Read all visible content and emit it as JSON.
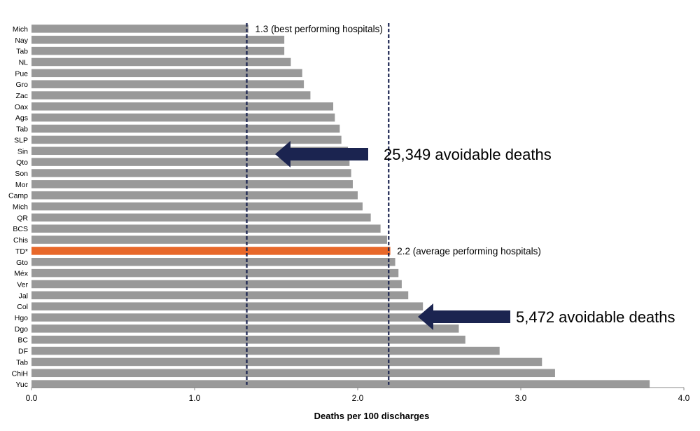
{
  "chart_data": {
    "type": "bar",
    "orientation": "horizontal",
    "categories": [
      "Mich",
      "Nay",
      "Tab",
      "NL",
      "Pue",
      "Gro",
      "Zac",
      "Oax",
      "Ags",
      "Tab",
      "SLP",
      "Sin",
      "Qto",
      "Son",
      "Mor",
      "Camp",
      "Mich",
      "QR",
      "BCS",
      "Chis",
      "TD*",
      "Gto",
      "Méx",
      "Ver",
      "Jal",
      "Col",
      "Hgo",
      "Dgo",
      "BC",
      "DF",
      "Tab",
      "ChiH",
      "Yuc"
    ],
    "values": [
      1.33,
      1.55,
      1.55,
      1.59,
      1.66,
      1.67,
      1.71,
      1.85,
      1.86,
      1.89,
      1.9,
      1.94,
      1.95,
      1.96,
      1.97,
      2.0,
      2.03,
      2.08,
      2.14,
      2.18,
      2.2,
      2.23,
      2.25,
      2.27,
      2.31,
      2.4,
      2.42,
      2.62,
      2.66,
      2.87,
      3.13,
      3.21,
      3.79
    ],
    "highlight_category": "TD*",
    "xlabel": "Deaths per 100 discharges",
    "xlim": [
      0,
      4
    ],
    "xticks": [
      "0.0",
      "1.0",
      "2.0",
      "3.0",
      "4.0"
    ],
    "grid": false,
    "reference_lines": [
      {
        "value": 1.32,
        "label": "1.3 (best performing hospitals)"
      },
      {
        "value": 2.19,
        "label": "2.2 (average performing hospitals)"
      }
    ],
    "annotations": [
      {
        "label": "25,349 avoidable deaths"
      },
      {
        "label": "5,472 avoidable deaths"
      }
    ],
    "colors": {
      "bar": "#999999",
      "highlight": "#e8682a",
      "arrow": "#1b2450",
      "ref_line": "#1b2450"
    }
  }
}
